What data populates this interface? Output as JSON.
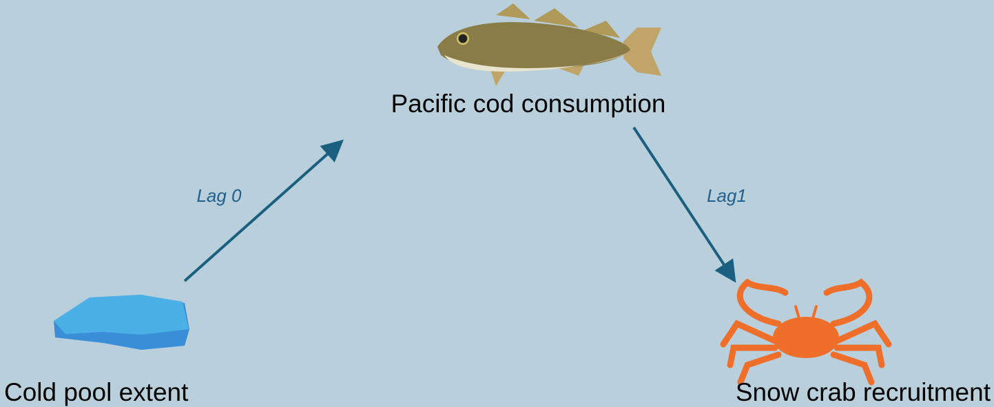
{
  "nodes": [
    {
      "label": "Pacific cod consumption"
    },
    {
      "label": "Cold pool extent"
    },
    {
      "label": "Snow crab recruitment"
    }
  ],
  "edges": [
    {
      "label": "Lag 0"
    },
    {
      "label": "Lag1"
    }
  ]
}
